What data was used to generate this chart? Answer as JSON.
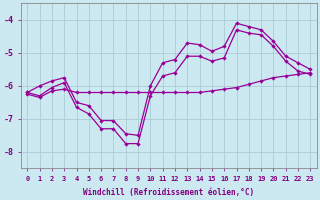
{
  "xlabel": "Windchill (Refroidissement éolien,°C)",
  "background_color": "#cce8f0",
  "grid_color": "#aaccd4",
  "line_color": "#990099",
  "xlim": [
    -0.5,
    23.5
  ],
  "ylim": [
    -8.5,
    -3.5
  ],
  "xticks": [
    0,
    1,
    2,
    3,
    4,
    5,
    6,
    7,
    8,
    9,
    10,
    11,
    12,
    13,
    14,
    15,
    16,
    17,
    18,
    19,
    20,
    21,
    22,
    23
  ],
  "yticks": [
    -8,
    -7,
    -6,
    -5,
    -4
  ],
  "hours": [
    0,
    1,
    2,
    3,
    4,
    5,
    6,
    7,
    8,
    9,
    10,
    11,
    12,
    13,
    14,
    15,
    16,
    17,
    18,
    19,
    20,
    21,
    22,
    23
  ],
  "upper": [
    -6.2,
    -6.0,
    -5.85,
    -5.75,
    -6.5,
    -6.6,
    -7.05,
    -7.05,
    -7.45,
    -7.5,
    -6.0,
    -5.3,
    -5.2,
    -4.7,
    -4.75,
    -4.95,
    -4.8,
    -4.1,
    -4.2,
    -4.3,
    -4.65,
    -5.1,
    -5.3,
    -5.5
  ],
  "middle": [
    -6.2,
    -6.3,
    -6.05,
    -5.9,
    -6.65,
    -6.85,
    -7.3,
    -7.3,
    -7.75,
    -7.75,
    -6.3,
    -5.7,
    -5.6,
    -5.1,
    -5.1,
    -5.25,
    -5.15,
    -4.3,
    -4.4,
    -4.45,
    -4.8,
    -5.25,
    -5.55,
    -5.65
  ],
  "lower": [
    -6.25,
    -6.35,
    -6.15,
    -6.1,
    -6.2,
    -6.2,
    -6.2,
    -6.2,
    -6.2,
    -6.2,
    -6.2,
    -6.2,
    -6.2,
    -6.2,
    -6.2,
    -6.15,
    -6.1,
    -6.05,
    -5.95,
    -5.85,
    -5.75,
    -5.7,
    -5.65,
    -5.6
  ]
}
